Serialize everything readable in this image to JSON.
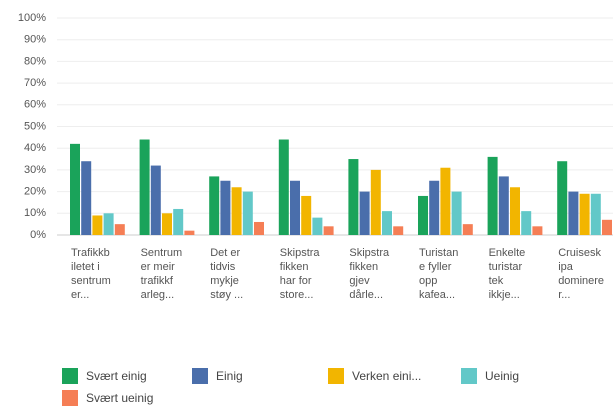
{
  "chart_data": {
    "type": "bar",
    "categories": [
      "Trafikkb\niletet i\nsentrum\ner...",
      "Sentrum\ner meir\ntrafikkf\narleg...",
      "Det er\ntidvis\nmykje\nstøy ...",
      "Skipstra\nfikken\nhar for\nstore...",
      "Skipstra\nfikken\ngjev\ndårle...",
      "Turistan\ne fyller\nopp\nkafea...",
      "Enkelte\nturistar\ntek\nikkje...",
      "Cruisesk\nipa\ndominere\nr..."
    ],
    "series": [
      {
        "name": "Svært einig",
        "color": "#1aa35a",
        "values": [
          42,
          44,
          27,
          44,
          35,
          18,
          36,
          34
        ]
      },
      {
        "name": "Einig",
        "color": "#4a6eab",
        "values": [
          34,
          32,
          25,
          25,
          20,
          25,
          27,
          20
        ]
      },
      {
        "name": "Verken eini...",
        "color": "#f2b500",
        "values": [
          9,
          10,
          22,
          18,
          30,
          31,
          22,
          19
        ]
      },
      {
        "name": "Ueinig",
        "color": "#62c8c8",
        "values": [
          10,
          12,
          20,
          8,
          11,
          20,
          11,
          19
        ]
      },
      {
        "name": "Svært ueinig",
        "color": "#f57e55",
        "values": [
          5,
          2,
          6,
          4,
          4,
          5,
          4,
          7
        ]
      }
    ],
    "ylim": [
      0,
      100
    ],
    "yticks": [
      {
        "value": 0,
        "label": "0%"
      },
      {
        "value": 10,
        "label": "10%"
      },
      {
        "value": 20,
        "label": "20%"
      },
      {
        "value": 30,
        "label": "30%"
      },
      {
        "value": 40,
        "label": "40%"
      },
      {
        "value": 50,
        "label": "50%"
      },
      {
        "value": 60,
        "label": "60%"
      },
      {
        "value": 70,
        "label": "70%"
      },
      {
        "value": 80,
        "label": "80%"
      },
      {
        "value": 90,
        "label": "90%"
      },
      {
        "value": 100,
        "label": "100%"
      }
    ],
    "grid": true
  }
}
